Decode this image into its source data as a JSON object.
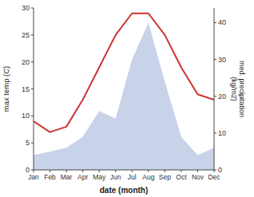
{
  "chart_data": {
    "type": "line",
    "categories": [
      "Jan",
      "Feb",
      "Mar",
      "Apr",
      "May",
      "Jun",
      "Jul",
      "Aug",
      "Sep",
      "Oct",
      "Nov",
      "Dec"
    ],
    "series": [
      {
        "type": "line",
        "color": "#cc3333",
        "values": [
          9,
          7,
          8,
          13,
          19,
          25,
          29,
          29,
          25,
          19,
          14,
          13
        ]
      },
      {
        "type": "area",
        "color": "#aabbdd",
        "axis": "y2",
        "values": [
          4,
          5,
          6,
          9,
          16,
          14,
          30,
          40,
          24,
          9,
          4,
          6
        ]
      }
    ],
    "xlabel": "date (month)",
    "ylabel": "max temp (C)",
    "y2label": "med. precipitation\n(kg/m2)",
    "ylim": [
      0,
      30
    ],
    "yticks": [
      0,
      5,
      10,
      15,
      20,
      25,
      30
    ],
    "y2lim": [
      0,
      44
    ],
    "y2ticks": [
      0,
      10,
      20,
      30,
      40
    ],
    "grid": false
  }
}
